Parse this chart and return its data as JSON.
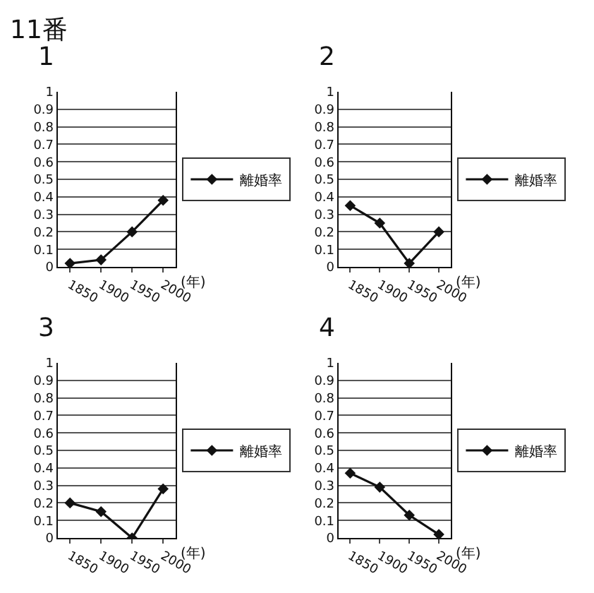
{
  "chart_data": [
    {
      "type": "line",
      "title": "1",
      "annotations": [
        "11番"
      ],
      "xlabel": "(年)",
      "x": [
        1850,
        1900,
        1950,
        2000
      ],
      "series": [
        {
          "name": "離婚率",
          "color": "#111111",
          "values": [
            0.02,
            0.04,
            0.2,
            0.38
          ]
        }
      ],
      "xlim": [
        1830,
        2020
      ],
      "xticks": [
        1850,
        1900,
        1950,
        2000
      ],
      "ylim": [
        0,
        1
      ],
      "yticks": [
        0,
        0.1,
        0.2,
        0.3,
        0.4,
        0.5,
        0.6,
        0.7,
        0.8,
        0.9,
        1
      ],
      "grid": "y",
      "legend": "right",
      "marker": "diamond"
    },
    {
      "type": "line",
      "title": "2",
      "xlabel": "(年)",
      "x": [
        1850,
        1900,
        1950,
        2000
      ],
      "series": [
        {
          "name": "離婚率",
          "color": "#111111",
          "values": [
            0.35,
            0.25,
            0.02,
            0.2
          ]
        }
      ],
      "xlim": [
        1830,
        2020
      ],
      "xticks": [
        1850,
        1900,
        1950,
        2000
      ],
      "ylim": [
        0,
        1
      ],
      "yticks": [
        0,
        0.1,
        0.2,
        0.3,
        0.4,
        0.5,
        0.6,
        0.7,
        0.8,
        0.9,
        1
      ],
      "grid": "y",
      "legend": "right",
      "marker": "diamond"
    },
    {
      "type": "line",
      "title": "3",
      "xlabel": "(年)",
      "x": [
        1850,
        1900,
        1950,
        2000
      ],
      "series": [
        {
          "name": "離婚率",
          "color": "#111111",
          "values": [
            0.2,
            0.15,
            0.0,
            0.28
          ]
        }
      ],
      "xlim": [
        1830,
        2020
      ],
      "xticks": [
        1850,
        1900,
        1950,
        2000
      ],
      "ylim": [
        0,
        1
      ],
      "yticks": [
        0,
        0.1,
        0.2,
        0.3,
        0.4,
        0.5,
        0.6,
        0.7,
        0.8,
        0.9,
        1
      ],
      "grid": "y",
      "legend": "right",
      "marker": "diamond"
    },
    {
      "type": "line",
      "title": "4",
      "xlabel": "(年)",
      "x": [
        1850,
        1900,
        1950,
        2000
      ],
      "series": [
        {
          "name": "離婚率",
          "color": "#111111",
          "values": [
            0.37,
            0.29,
            0.13,
            0.02
          ]
        }
      ],
      "xlim": [
        1830,
        2020
      ],
      "xticks": [
        1850,
        1900,
        1950,
        2000
      ],
      "ylim": [
        0,
        1
      ],
      "yticks": [
        0,
        0.1,
        0.2,
        0.3,
        0.4,
        0.5,
        0.6,
        0.7,
        0.8,
        0.9,
        1
      ],
      "grid": "y",
      "legend": "right",
      "marker": "diamond"
    }
  ]
}
